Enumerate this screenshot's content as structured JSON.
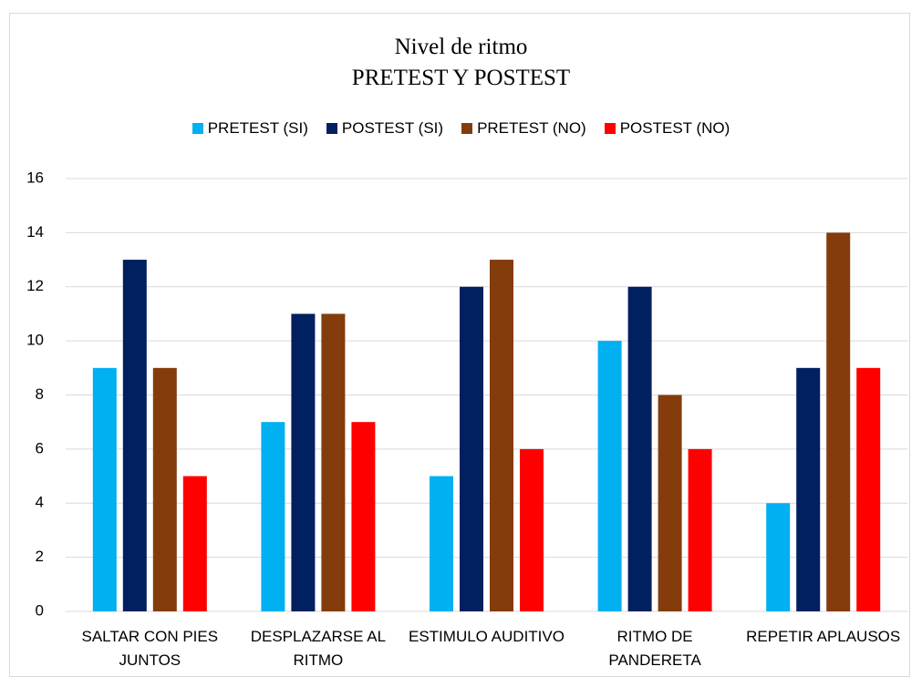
{
  "chart_data": {
    "type": "bar",
    "title": "Nivel de ritmo",
    "subtitle": "PRETEST Y POSTEST",
    "categories": [
      "SALTAR CON PIES JUNTOS",
      "DESPLAZARSE AL RITMO",
      "ESTIMULO AUDITIVO",
      "RITMO DE PANDERETA",
      "REPETIR APLAUSOS"
    ],
    "series": [
      {
        "name": "PRETEST (SI)",
        "color": "#00b0f0",
        "values": [
          9,
          7,
          5,
          10,
          4
        ]
      },
      {
        "name": "POSTEST (SI)",
        "color": "#002060",
        "values": [
          13,
          11,
          12,
          12,
          9
        ]
      },
      {
        "name": "PRETEST (NO)",
        "color": "#843c0c",
        "values": [
          9,
          11,
          13,
          8,
          14
        ]
      },
      {
        "name": "POSTEST (NO)",
        "color": "#ff0000",
        "values": [
          5,
          7,
          6,
          6,
          9
        ]
      }
    ],
    "ylim": [
      0,
      16
    ],
    "yticks": [
      0,
      2,
      4,
      6,
      8,
      10,
      12,
      14,
      16
    ],
    "grid": true,
    "legend": "top"
  }
}
